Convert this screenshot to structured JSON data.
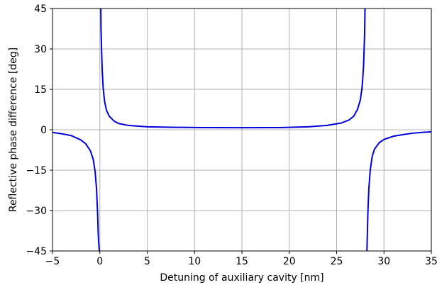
{
  "chart_data": {
    "type": "line",
    "title": "",
    "xlabel": "Detuning of auxiliary cavity [nm]",
    "ylabel": "Reflective phase difference [deg]",
    "xlim": [
      -5,
      35
    ],
    "ylim": [
      -45,
      45
    ],
    "x_ticks": [
      -5,
      0,
      5,
      10,
      15,
      20,
      25,
      30,
      35
    ],
    "y_ticks": [
      -45,
      -30,
      -15,
      0,
      15,
      30,
      45
    ],
    "x_tick_labels": [
      "−5",
      "0",
      "5",
      "10",
      "15",
      "20",
      "25",
      "30",
      "35"
    ],
    "y_tick_labels": [
      "−45",
      "−30",
      "−15",
      "0",
      "15",
      "30",
      "45"
    ],
    "grid": true,
    "series_color": "#0000dd",
    "series": [
      {
        "x": [
          -5,
          -4,
          -3,
          -2,
          -1.5,
          -1,
          -0.7,
          -0.5,
          -0.35,
          -0.25,
          -0.18,
          -0.12,
          -0.07,
          -0.05
        ],
        "y": [
          -1.0,
          -1.5,
          -2.2,
          -3.8,
          -5.2,
          -7.8,
          -11.0,
          -15.5,
          -22.0,
          -30.0,
          -37.5,
          -42.0,
          -44.5,
          -45.0
        ]
      },
      {
        "x": [
          0.1,
          0.12,
          0.18,
          0.25,
          0.35,
          0.5,
          0.7,
          1.0,
          1.5,
          2.0,
          3.0,
          5.0,
          8.0,
          11.0,
          15.0,
          19.0,
          22.0,
          24.0,
          25.5,
          26.3,
          26.8,
          27.2,
          27.5,
          27.7,
          27.85,
          27.95,
          28.0
        ],
        "y": [
          45.0,
          38.0,
          30.0,
          22.0,
          15.5,
          10.5,
          7.2,
          5.0,
          3.2,
          2.3,
          1.6,
          1.1,
          0.9,
          0.8,
          0.75,
          0.8,
          1.1,
          1.6,
          2.5,
          3.6,
          5.0,
          7.5,
          11.0,
          16.0,
          24.0,
          35.0,
          45.0
        ]
      },
      {
        "x": [
          28.2,
          28.25,
          28.3,
          28.4,
          28.55,
          28.75,
          29.0,
          29.5,
          30.0,
          31.0,
          32.0,
          33.0,
          34.0,
          35.0
        ],
        "y": [
          -45.0,
          -38.0,
          -31.0,
          -22.0,
          -15.0,
          -10.0,
          -7.2,
          -4.8,
          -3.6,
          -2.4,
          -1.8,
          -1.3,
          -1.0,
          -0.8
        ]
      }
    ]
  }
}
